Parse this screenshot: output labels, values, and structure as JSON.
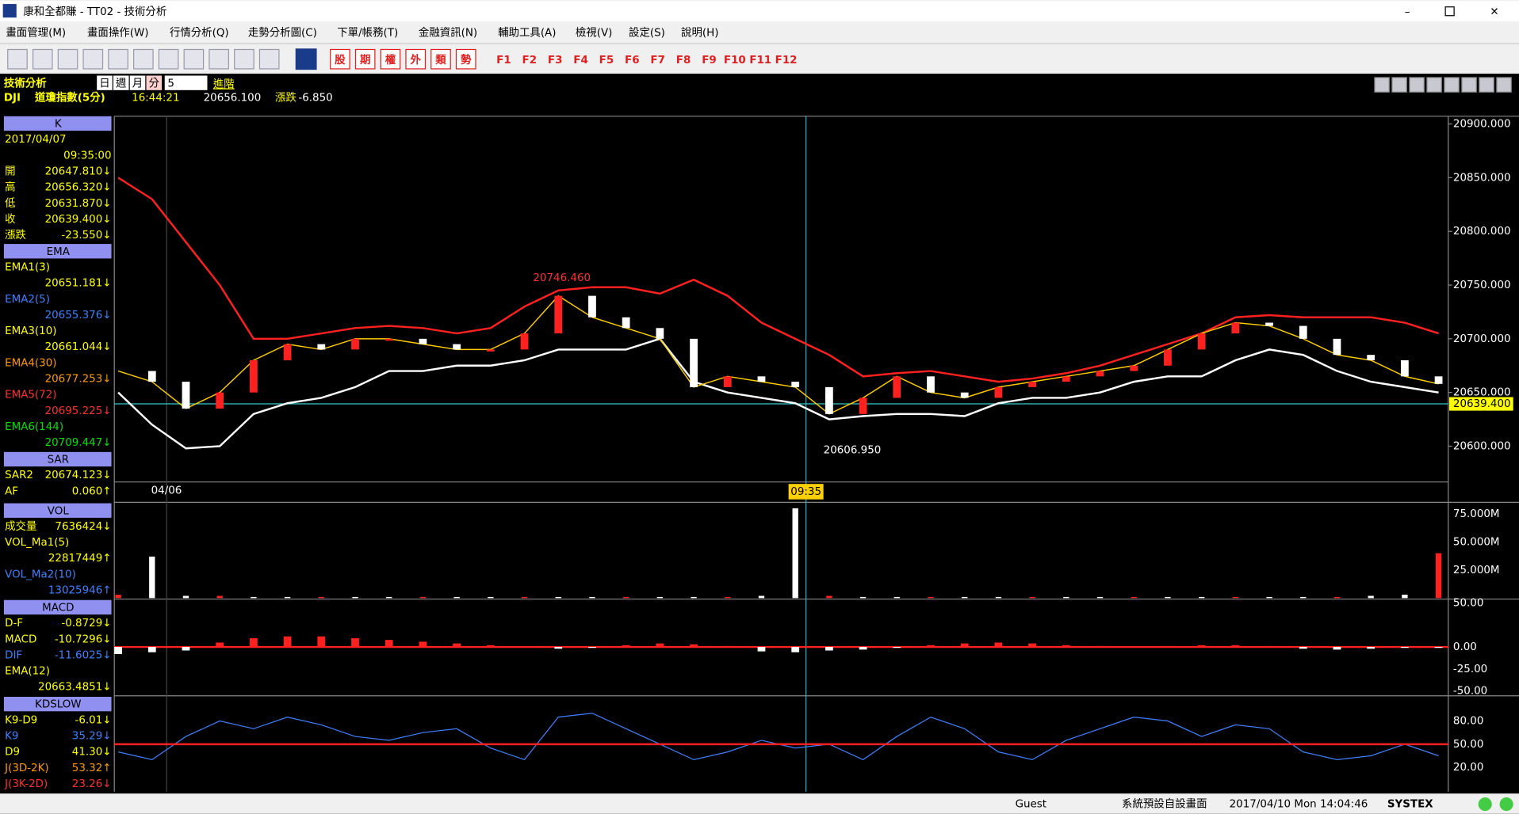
{
  "window": {
    "title": "康和全都賺 - TT02 - 技術分析"
  },
  "menu": [
    "畫面管理(M)",
    "畫面操作(W)",
    "行情分析(Q)",
    "走勢分析圖(C)",
    "下單/帳務(T)",
    "金融資訊(N)",
    "輔助工具(A)",
    "檢視(V)",
    "設定(S)",
    "說明(H)"
  ],
  "toolbar": {
    "buttons": [
      "股",
      "期",
      "權",
      "外",
      "類",
      "勢"
    ],
    "fkeys": [
      "F1",
      "F2",
      "F3",
      "F4",
      "F5",
      "F6",
      "F7",
      "F8",
      "F9",
      "F10",
      "F11",
      "F12"
    ]
  },
  "header": {
    "title": "技術分析",
    "periods": [
      "日",
      "週",
      "月",
      "分"
    ],
    "interval": "5",
    "mode": "進階",
    "symbol": "DJI",
    "name": "道瓊指數(5分)",
    "time": "16:44:21",
    "price": "20656.100",
    "change_label": "漲跌",
    "change": "-6.850"
  },
  "panels": [
    {
      "name": "K",
      "items": [
        {
          "label": "2017/04/07"
        },
        {
          "value": "09:35:00"
        },
        {
          "label": "開",
          "value": "20647.810↓"
        },
        {
          "label": "高",
          "value": "20656.320↓"
        },
        {
          "label": "低",
          "value": "20631.870↓"
        },
        {
          "label": "收",
          "value": "20639.400↓"
        },
        {
          "label": "漲跌",
          "value": "-23.550↓"
        }
      ]
    },
    {
      "name": "EMA",
      "items": [
        {
          "label": "EMA1(3)",
          "value": "20651.181↓",
          "color": "#ffff00"
        },
        {
          "label": "EMA2(5)",
          "value": "20655.376↓",
          "color": "#4080ff"
        },
        {
          "label": "EMA3(10)",
          "value": "20661.044↓",
          "color": "#ffff00"
        },
        {
          "label": "EMA4(30)",
          "value": "20677.253↓",
          "color": "#ff9900"
        },
        {
          "label": "EMA5(72)",
          "value": "20695.225↓",
          "color": "#ff3030"
        },
        {
          "label": "EMA6(144)",
          "value": "20709.447↓",
          "color": "#00e000"
        }
      ]
    },
    {
      "name": "SAR",
      "items": [
        {
          "label": "SAR2",
          "value": "20674.123↓"
        },
        {
          "label": "AF",
          "value": "0.060↑"
        }
      ]
    },
    {
      "name": "VOL",
      "items": [
        {
          "label": "成交量",
          "value": "7636424↓"
        },
        {
          "label": "VOL_Ma1(5)",
          "value": "22817449↑"
        },
        {
          "label": "VOL_Ma2(10)",
          "value": "13025946↑",
          "color": "#4080ff"
        }
      ]
    },
    {
      "name": "MACD",
      "items": [
        {
          "label": "D-F",
          "value": "-0.8729↓"
        },
        {
          "label": "MACD",
          "value": "-10.7296↓"
        },
        {
          "label": "DIF",
          "value": "-11.6025↓",
          "color": "#4080ff"
        },
        {
          "label": "EMA(12)",
          "value": "20663.4851↓"
        }
      ]
    },
    {
      "name": "KDSLOW",
      "items": [
        {
          "label": "K9-D9",
          "value": "-6.01↓"
        },
        {
          "label": "K9",
          "value": "35.29↓",
          "color": "#4080ff"
        },
        {
          "label": "D9",
          "value": "41.30↓"
        },
        {
          "label": "J(3D-2K)",
          "value": "53.32↑",
          "color": "#ff9900"
        },
        {
          "label": "J(3K-2D)",
          "value": "23.26↓",
          "color": "#ff3030"
        }
      ]
    }
  ],
  "price_axis": {
    "ticks": [
      "20900.000",
      "20850.000",
      "20800.000",
      "20750.000",
      "20700.000",
      "20650.000",
      "20600.000"
    ],
    "current": "20639.400"
  },
  "annotations": {
    "high": "20746.460",
    "low": "20606.950",
    "date": "04/06",
    "cursor": "09:35"
  },
  "price": {
    "close": [
      20670,
      20660,
      20635,
      20650,
      20680,
      20695,
      20690,
      20700,
      20700,
      20695,
      20690,
      20690,
      20705,
      20740,
      20720,
      20710,
      20700,
      20655,
      20665,
      20660,
      20655,
      20630,
      20645,
      20665,
      20650,
      20645,
      20655,
      20660,
      20665,
      20670,
      20675,
      20690,
      20705,
      20715,
      20712,
      20700,
      20685,
      20680,
      20665,
      20658
    ],
    "upper": [
      20850,
      20830,
      20790,
      20750,
      20700,
      20700,
      20705,
      20710,
      20712,
      20710,
      20705,
      20710,
      20730,
      20745,
      20748,
      20748,
      20742,
      20755,
      20740,
      20715,
      20700,
      20685,
      20665,
      20668,
      20670,
      20665,
      20660,
      20663,
      20668,
      20675,
      20685,
      20695,
      20705,
      20720,
      20722,
      20720,
      20720,
      20720,
      20715,
      20705
    ],
    "lower": [
      20650,
      20620,
      20598,
      20600,
      20630,
      20640,
      20645,
      20655,
      20670,
      20670,
      20675,
      20675,
      20680,
      20690,
      20690,
      20690,
      20700,
      20660,
      20650,
      20645,
      20640,
      20625,
      20628,
      20630,
      20630,
      20628,
      20640,
      20645,
      20645,
      20650,
      20660,
      20665,
      20665,
      20680,
      20690,
      20685,
      20670,
      20660,
      20655,
      20650
    ],
    "colors": {
      "close": "#ffcc00",
      "upper": "#ff2020",
      "lower": "#ffffff"
    }
  },
  "volume": {
    "ticks": [
      "75.000M",
      "50.000M",
      "25.000M"
    ],
    "values": [
      3,
      37,
      2,
      2,
      1,
      1,
      1,
      1,
      1,
      1,
      1,
      1,
      1,
      1,
      1,
      1,
      1,
      1,
      1,
      2,
      80,
      2,
      1,
      1,
      1,
      1,
      1,
      1,
      1,
      1,
      1,
      1,
      1,
      1,
      1,
      1,
      1,
      2,
      3,
      40
    ]
  },
  "macd": {
    "ticks": [
      "50.00",
      "0.00",
      "-25.00",
      "-50.00"
    ],
    "values": [
      -8,
      -6,
      -4,
      5,
      10,
      12,
      12,
      10,
      8,
      6,
      4,
      2,
      0,
      -2,
      -1,
      2,
      4,
      3,
      1,
      -5,
      -6,
      -4,
      -3,
      -1,
      2,
      4,
      5,
      4,
      2,
      1,
      0,
      1,
      2,
      2,
      1,
      -2,
      -3,
      -2,
      -1,
      -1
    ]
  },
  "kd": {
    "ticks": [
      "80.00",
      "50.00",
      "20.00"
    ],
    "k9": [
      40,
      30,
      60,
      80,
      70,
      85,
      75,
      60,
      55,
      65,
      70,
      45,
      30,
      85,
      90,
      70,
      50,
      30,
      40,
      55,
      45,
      50,
      30,
      60,
      85,
      70,
      40,
      30,
      55,
      70,
      85,
      80,
      60,
      75,
      70,
      40,
      30,
      35,
      50,
      35
    ]
  },
  "status": [
    "Guest",
    "系統預設自設畫面",
    "2017/04/10 Mon 14:04:46",
    "SYSTEX"
  ]
}
